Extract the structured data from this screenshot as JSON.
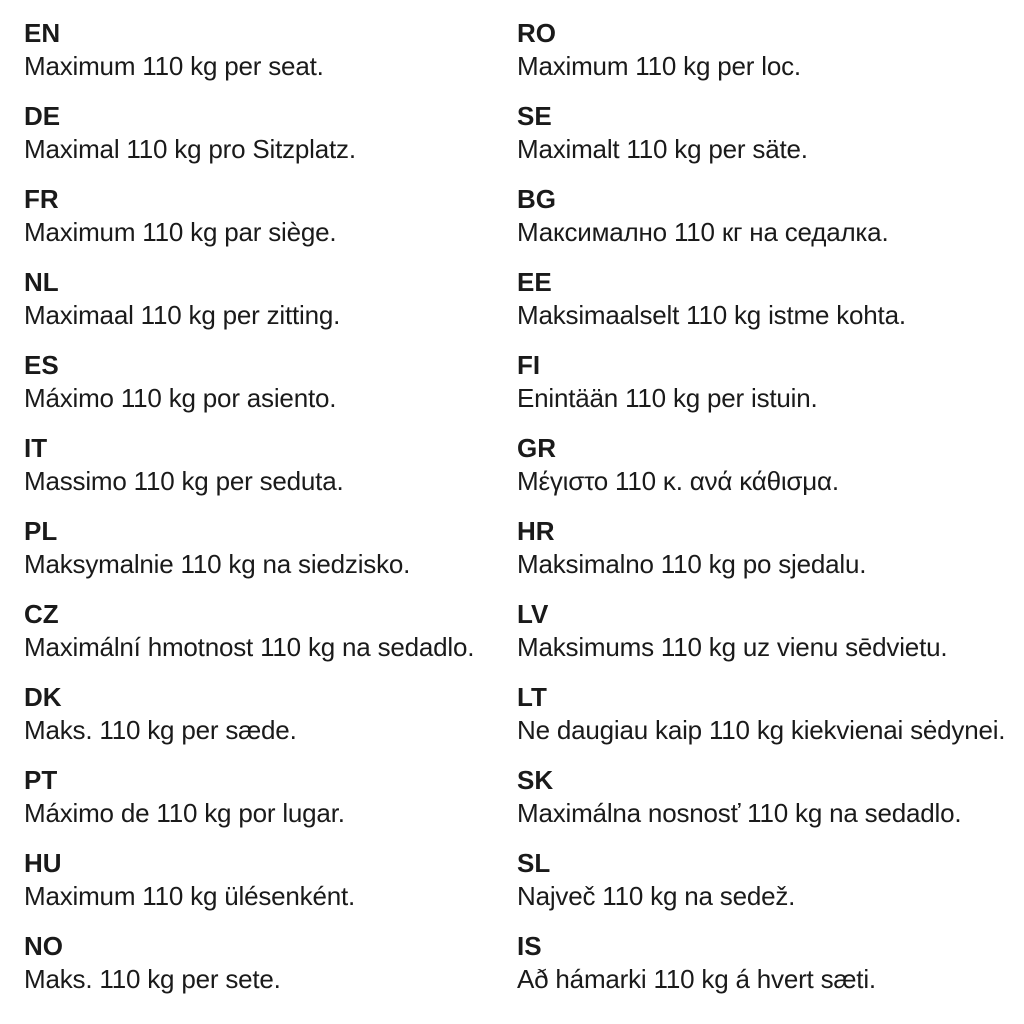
{
  "columns": {
    "left": {
      "entries": [
        {
          "code": "EN",
          "text": "Maximum 110 kg per seat."
        },
        {
          "code": "DE",
          "text": "Maximal 110 kg pro Sitzplatz."
        },
        {
          "code": "FR",
          "text": "Maximum 110 kg par siège."
        },
        {
          "code": "NL",
          "text": "Maximaal 110 kg per zitting."
        },
        {
          "code": "ES",
          "text": "Máximo 110 kg por asiento."
        },
        {
          "code": "IT",
          "text": "Massimo 110 kg per seduta."
        },
        {
          "code": "PL",
          "text": "Maksymalnie 110 kg na siedzisko."
        },
        {
          "code": "CZ",
          "text": "Maximální hmotnost 110 kg na sedadlo."
        },
        {
          "code": "DK",
          "text": "Maks. 110 kg per sæde."
        },
        {
          "code": "PT",
          "text": "Máximo de 110 kg por lugar."
        },
        {
          "code": "HU",
          "text": "Maximum 110 kg ülésenként."
        },
        {
          "code": "NO",
          "text": "Maks. 110 kg per sete."
        }
      ]
    },
    "right": {
      "entries": [
        {
          "code": "RO",
          "text": "Maximum 110 kg per loc."
        },
        {
          "code": "SE",
          "text": "Maximalt 110 kg per säte."
        },
        {
          "code": "BG",
          "text": "Максимално 110 кг на седалка."
        },
        {
          "code": "EE",
          "text": "Maksimaalselt 110 kg istme kohta."
        },
        {
          "code": "FI",
          "text": "Enintään 110 kg per istuin."
        },
        {
          "code": "GR",
          "text": "Μέγιστο 110 κ. ανά κάθισμα."
        },
        {
          "code": "HR",
          "text": "Maksimalno 110 kg po sjedalu."
        },
        {
          "code": "LV",
          "text": "Maksimums 110 kg uz vienu sēdvietu."
        },
        {
          "code": "LT",
          "text": "Ne daugiau kaip 110 kg kiekvienai sėdynei."
        },
        {
          "code": "SK",
          "text": "Maximálna nosnosť 110 kg na sedadlo."
        },
        {
          "code": "SL",
          "text": "Največ 110 kg na sedež."
        },
        {
          "code": "IS",
          "text": "Að hámarki 110 kg á hvert sæti."
        }
      ]
    }
  },
  "text_color": "#1a1a1a",
  "background_color": "#ffffff"
}
